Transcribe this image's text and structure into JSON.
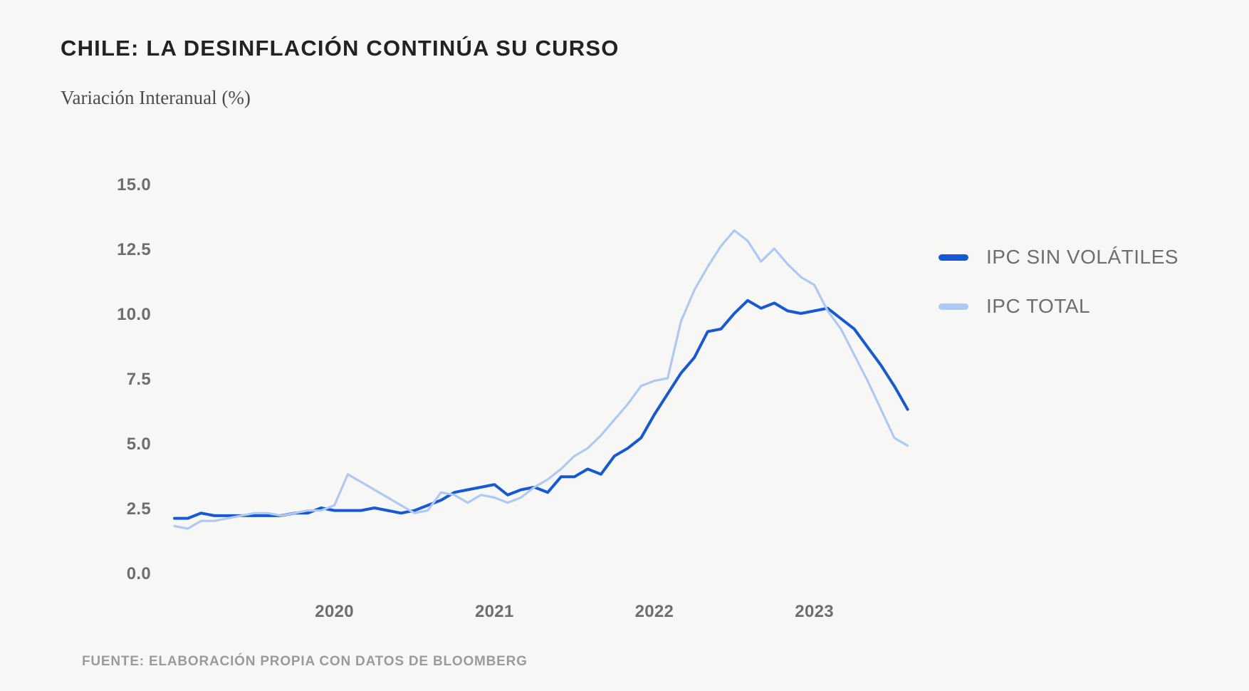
{
  "header": {
    "title": "CHILE: LA DESINFLACIÓN CONTINÚA SU CURSO",
    "subtitle": "Variación Interanual (%)"
  },
  "footer": {
    "source": "FUENTE: ELABORACIÓN PROPIA CON DATOS DE BLOOMBERG"
  },
  "colors": {
    "background": "#f7f7f5",
    "title_text": "#222222",
    "subtitle_text": "#4c4c4c",
    "axis_text": "#6e6e6e",
    "legend_text": "#6e6e6e",
    "source_text": "#9b9b9b",
    "ipc_sin_volatiles_line": "#1659d6",
    "ipc_total_line": "#aec9f2"
  },
  "chart_data": {
    "type": "line",
    "title": "CHILE: LA DESINFLACIÓN CONTINÚA SU CURSO",
    "ylabel": "Variación Interanual (%)",
    "xlabel": "",
    "ylim": [
      0,
      15
    ],
    "grid": false,
    "legend_position": "right",
    "x_frequency": "monthly",
    "x_months": [
      "2019-01",
      "2019-02",
      "2019-03",
      "2019-04",
      "2019-05",
      "2019-06",
      "2019-07",
      "2019-08",
      "2019-09",
      "2019-10",
      "2019-11",
      "2019-12",
      "2020-01",
      "2020-02",
      "2020-03",
      "2020-04",
      "2020-05",
      "2020-06",
      "2020-07",
      "2020-08",
      "2020-09",
      "2020-10",
      "2020-11",
      "2020-12",
      "2021-01",
      "2021-02",
      "2021-03",
      "2021-04",
      "2021-05",
      "2021-06",
      "2021-07",
      "2021-08",
      "2021-09",
      "2021-10",
      "2021-11",
      "2021-12",
      "2022-01",
      "2022-02",
      "2022-03",
      "2022-04",
      "2022-05",
      "2022-06",
      "2022-07",
      "2022-08",
      "2022-09",
      "2022-10",
      "2022-11",
      "2022-12",
      "2023-01",
      "2023-02",
      "2023-03",
      "2023-04",
      "2023-05",
      "2023-06",
      "2023-07",
      "2023-08"
    ],
    "yticks": [
      {
        "value": 0,
        "label": "0.0"
      },
      {
        "value": 2.5,
        "label": "2.5"
      },
      {
        "value": 5,
        "label": "5.0"
      },
      {
        "value": 7.5,
        "label": "7.5"
      },
      {
        "value": 10,
        "label": "10.0"
      },
      {
        "value": 12.5,
        "label": "12.5"
      },
      {
        "value": 15,
        "label": "15.0"
      }
    ],
    "xticks": [
      {
        "month_index": 12,
        "label": "2020"
      },
      {
        "month_index": 24,
        "label": "2021"
      },
      {
        "month_index": 36,
        "label": "2022"
      },
      {
        "month_index": 48,
        "label": "2023"
      }
    ],
    "series": [
      {
        "name": "IPC SIN VOLÁTILES",
        "key": "ipc-sin-volatiles",
        "color": "#1659d6",
        "values": [
          2.1,
          2.1,
          2.3,
          2.2,
          2.2,
          2.2,
          2.2,
          2.2,
          2.2,
          2.3,
          2.3,
          2.5,
          2.4,
          2.4,
          2.4,
          2.5,
          2.4,
          2.3,
          2.4,
          2.6,
          2.8,
          3.1,
          3.2,
          3.3,
          3.4,
          3.0,
          3.2,
          3.3,
          3.1,
          3.7,
          3.7,
          4.0,
          3.8,
          4.5,
          4.8,
          5.2,
          6.1,
          6.9,
          7.7,
          8.3,
          9.3,
          9.4,
          10.0,
          10.5,
          10.2,
          10.4,
          10.1,
          10.0,
          10.1,
          10.2,
          9.8,
          9.4,
          8.7,
          8.0,
          7.2,
          6.3
        ]
      },
      {
        "name": "IPC TOTAL",
        "key": "ipc-total",
        "color": "#aec9f2",
        "values": [
          1.8,
          1.7,
          2.0,
          2.0,
          2.1,
          2.2,
          2.3,
          2.3,
          2.2,
          2.3,
          2.4,
          2.4,
          2.6,
          3.8,
          3.5,
          3.2,
          2.9,
          2.6,
          2.3,
          2.4,
          3.1,
          3.0,
          2.7,
          3.0,
          2.9,
          2.7,
          2.9,
          3.3,
          3.6,
          4.0,
          4.5,
          4.8,
          5.3,
          5.9,
          6.5,
          7.2,
          7.4,
          7.5,
          9.7,
          10.9,
          11.8,
          12.6,
          13.2,
          12.8,
          12.0,
          12.5,
          11.9,
          11.4,
          11.1,
          10.1,
          9.4,
          8.4,
          7.4,
          6.3,
          5.2,
          4.9
        ]
      }
    ]
  }
}
